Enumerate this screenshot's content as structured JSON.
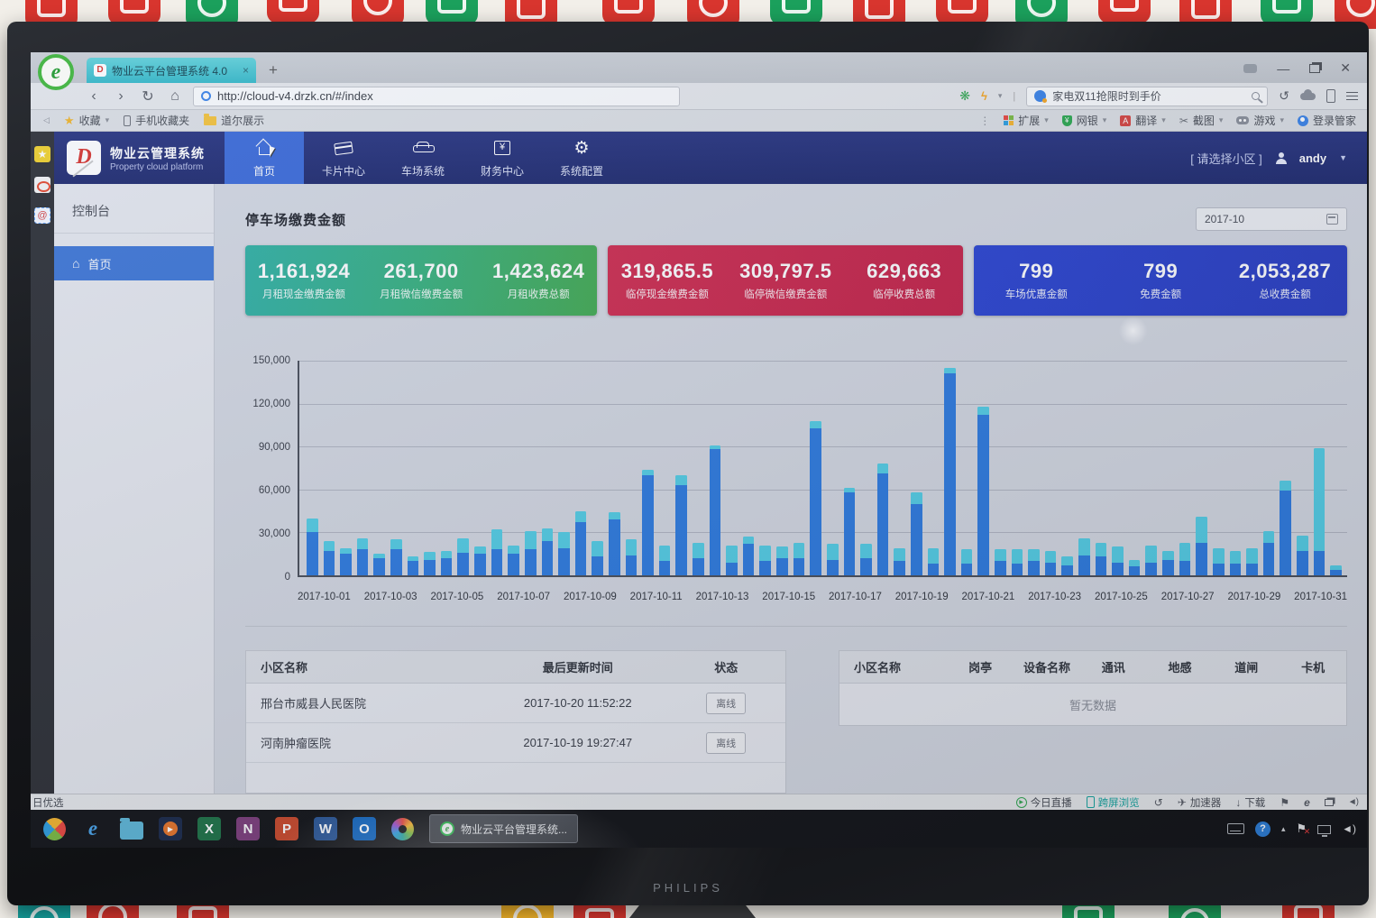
{
  "monitor": {
    "brand": "PHILIPS"
  },
  "browser": {
    "tab_title": "物业云平台管理系统 4.0",
    "url": "http://cloud-v4.drzk.cn/#/index",
    "search_text": "家电双11抢限时到手价",
    "bookmarks": [
      "收藏",
      "手机收藏夹",
      "道尔展示"
    ],
    "toolbar_items": [
      "扩展",
      "网银",
      "翻译",
      "截图",
      "游戏",
      "登录管家"
    ],
    "status_left": "日优选",
    "status_items": [
      "今日直播",
      "跨屏浏览",
      "加速器",
      "下载"
    ]
  },
  "app": {
    "brand": {
      "title": "物业云管理系统",
      "subtitle": "Property cloud platform"
    },
    "nav": [
      {
        "label": "首页"
      },
      {
        "label": "卡片中心"
      },
      {
        "label": "车场系统"
      },
      {
        "label": "财务中心"
      },
      {
        "label": "系统配置"
      }
    ],
    "header_right": {
      "select_area": "[ 请选择小区 ]",
      "username": "andy"
    },
    "sidebar": {
      "section": "控制台",
      "home": "首页"
    },
    "main": {
      "title": "停车场缴费金额",
      "date_value": "2017-10"
    },
    "cards": [
      {
        "items": [
          {
            "value": "1,161,924",
            "label": "月租现金缴费金额"
          },
          {
            "value": "261,700",
            "label": "月租微信缴费金额"
          },
          {
            "value": "1,423,624",
            "label": "月租收费总额"
          }
        ]
      },
      {
        "items": [
          {
            "value": "319,865.5",
            "label": "临停现金缴费金额"
          },
          {
            "value": "309,797.5",
            "label": "临停微信缴费金额"
          },
          {
            "value": "629,663",
            "label": "临停收费总额"
          }
        ]
      },
      {
        "items": [
          {
            "value": "799",
            "label": "车场优惠金额"
          },
          {
            "value": "799",
            "label": "免费金额"
          },
          {
            "value": "2,053,287",
            "label": "总收费金额"
          }
        ]
      }
    ],
    "community_table": {
      "headers": [
        "小区名称",
        "最后更新时间",
        "状态"
      ],
      "rows": [
        {
          "name": "邢台市威县人民医院",
          "updated": "2017-10-20 11:52:22",
          "status": "离线"
        },
        {
          "name": "河南肿瘤医院",
          "updated": "2017-10-19 19:27:47",
          "status": "离线"
        }
      ]
    },
    "device_table": {
      "headers": [
        "小区名称",
        "岗亭",
        "设备名称",
        "通讯",
        "地感",
        "道闸",
        "卡机"
      ],
      "empty_text": "暂无数据"
    }
  },
  "chart_data": {
    "type": "bar",
    "stacked": true,
    "title": "停车场缴费金额",
    "ylim": [
      0,
      150000
    ],
    "ytick_labels": [
      "150,000",
      "120,000",
      "90,000",
      "60,000",
      "30,000",
      "0"
    ],
    "x_labels": [
      "2017-10-01",
      "2017-10-03",
      "2017-10-05",
      "2017-10-07",
      "2017-10-09",
      "2017-10-11",
      "2017-10-13",
      "2017-10-15",
      "2017-10-17",
      "2017-10-19",
      "2017-10-21",
      "2017-10-23",
      "2017-10-25",
      "2017-10-27",
      "2017-10-29",
      "2017-10-31"
    ],
    "bars_per_day": 2,
    "series": [
      {
        "color": "#2f7ce0",
        "values": [
          30000,
          17000,
          15000,
          18000,
          12000,
          18000,
          10000,
          11000,
          12000,
          16000,
          15000,
          18000,
          15000,
          18000,
          24000,
          19000,
          37000,
          13000,
          39000,
          14000,
          70000,
          10000,
          63000,
          12000,
          88000,
          9000,
          22000,
          10000,
          12000,
          12000,
          103000,
          11000,
          58000,
          12000,
          71000,
          10000,
          50000,
          8000,
          141000,
          8000,
          112000,
          10000,
          8000,
          10000,
          9000,
          7000,
          14000,
          13000,
          9000,
          6000,
          9000,
          11000,
          10000,
          23000,
          8000,
          8000,
          8000,
          23000,
          59000,
          17000,
          17000,
          4000
        ]
      },
      {
        "color": "#55cfe6",
        "values": [
          10000,
          7000,
          4000,
          8000,
          3000,
          7000,
          3000,
          5500,
          5000,
          10000,
          5000,
          14000,
          6000,
          13000,
          9000,
          11000,
          8000,
          11000,
          5000,
          11000,
          4000,
          11000,
          7000,
          11000,
          3000,
          12000,
          5000,
          11000,
          8000,
          11000,
          5000,
          11000,
          3000,
          10000,
          7000,
          9000,
          8000,
          11000,
          4000,
          10000,
          6000,
          8000,
          10000,
          8000,
          8000,
          6000,
          12000,
          10000,
          11000,
          5000,
          12000,
          6000,
          13000,
          18000,
          11000,
          9000,
          11000,
          8000,
          7000,
          11000,
          72000,
          3000
        ]
      }
    ]
  },
  "taskbar": {
    "active_task": "物业云平台管理系统..."
  }
}
